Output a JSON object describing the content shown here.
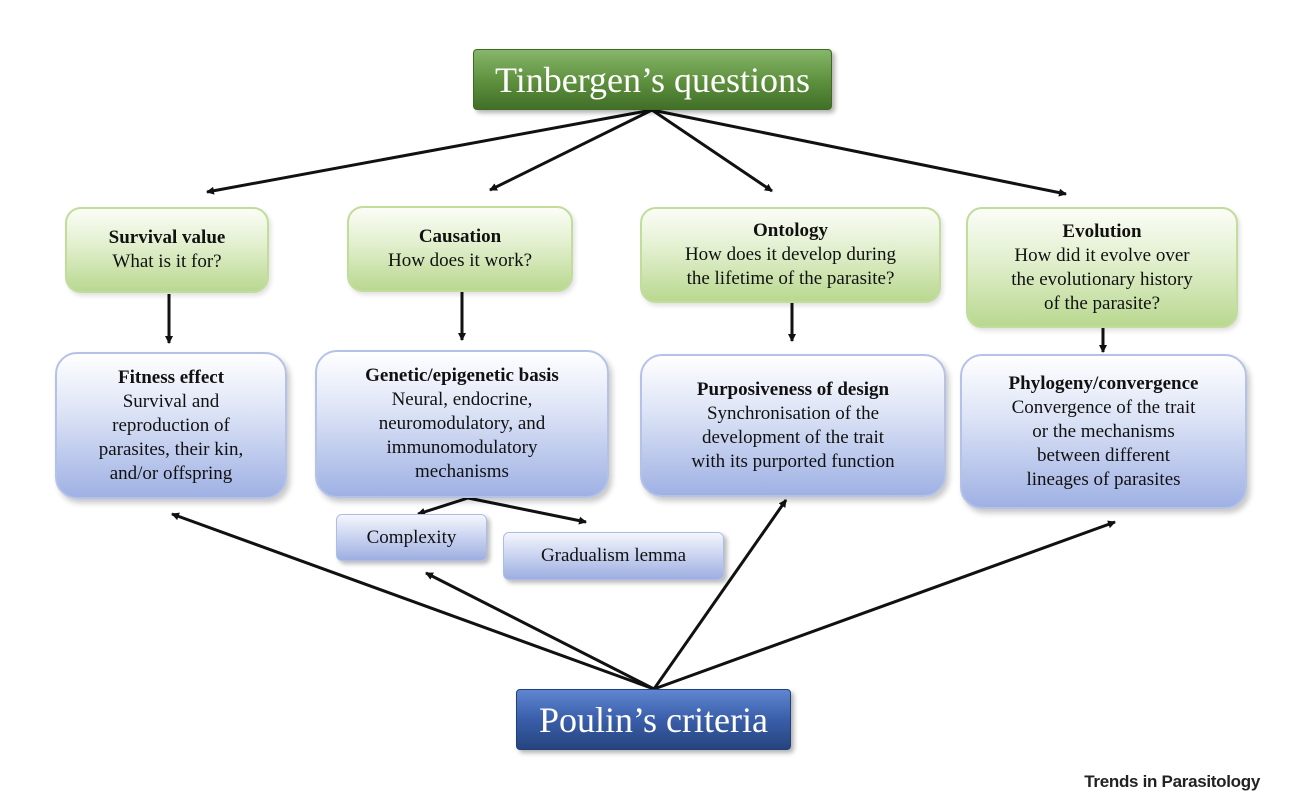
{
  "top": {
    "title": "Tinbergen’s questions"
  },
  "bottom": {
    "title": "Poulin’s criteria"
  },
  "questions": [
    {
      "title": "Survival value",
      "lines": [
        "What is it for?"
      ]
    },
    {
      "title": "Causation",
      "lines": [
        "How does it work?"
      ]
    },
    {
      "title": "Ontology",
      "lines": [
        "How does it develop during",
        "the lifetime of the parasite?"
      ]
    },
    {
      "title": "Evolution",
      "lines": [
        "How did it evolve over",
        "the evolutionary history",
        "of the parasite?"
      ]
    }
  ],
  "criteria": [
    {
      "title": "Fitness effect",
      "lines": [
        "Survival and",
        "reproduction of",
        "parasites, their kin,",
        "and/or offspring"
      ]
    },
    {
      "title": "Genetic/epigenetic basis",
      "lines": [
        "Neural, endocrine,",
        "neuromodulatory, and",
        "immunomodulatory",
        "mechanisms"
      ]
    },
    {
      "title": "Purposiveness of design",
      "lines": [
        "Synchronisation of the",
        "development of the trait",
        "with its purported function"
      ]
    },
    {
      "title": "Phylogeny/convergence",
      "lines": [
        "Convergence of the trait",
        "or the mechanisms",
        "between different",
        "lineages of parasites"
      ]
    }
  ],
  "sub_criteria": {
    "complexity": "Complexity",
    "gradualism": "Gradualism lemma"
  },
  "credit": "Trends in Parasitology",
  "colors": {
    "green_header": "#5c8f3c",
    "blue_header": "#3a5ea9",
    "green_box": "#e1efcd",
    "blue_box": "#c9d3f0",
    "arrow": "#111111"
  }
}
